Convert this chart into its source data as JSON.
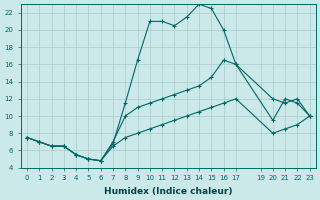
{
  "xlabel": "Humidex (Indice chaleur)",
  "bg_color": "#cce9e9",
  "grid_color": "#aacccc",
  "line_color": "#006666",
  "xlim": [
    -0.5,
    23.5
  ],
  "ylim": [
    4,
    23
  ],
  "xticks": [
    0,
    1,
    2,
    3,
    4,
    5,
    6,
    7,
    8,
    9,
    10,
    11,
    12,
    13,
    14,
    15,
    16,
    17,
    19,
    20,
    21,
    22,
    23
  ],
  "yticks": [
    4,
    6,
    8,
    10,
    12,
    14,
    16,
    18,
    20,
    22
  ],
  "line_main_x": [
    0,
    1,
    2,
    3,
    4,
    5,
    6,
    7,
    8,
    9,
    10,
    11,
    12,
    13,
    14,
    15,
    16,
    17,
    20,
    21,
    22,
    23
  ],
  "line_main_y": [
    7.5,
    7.0,
    6.5,
    6.5,
    5.5,
    5.0,
    4.8,
    6.8,
    11.5,
    16.5,
    21.0,
    21.0,
    20.5,
    21.5,
    23.0,
    22.5,
    20.0,
    16.0,
    12.0,
    11.5,
    12.0,
    10.0
  ],
  "line_upper_x": [
    0,
    1,
    2,
    3,
    4,
    5,
    6,
    7,
    8,
    9,
    10,
    11,
    12,
    13,
    14,
    15,
    16,
    17,
    20,
    21,
    22,
    23
  ],
  "line_upper_y": [
    7.5,
    7.0,
    6.5,
    6.5,
    5.5,
    5.0,
    4.8,
    7.0,
    10.0,
    11.0,
    11.5,
    12.0,
    12.5,
    13.0,
    13.5,
    14.5,
    16.5,
    16.0,
    9.5,
    12.0,
    11.5,
    10.0
  ],
  "line_lower_x": [
    0,
    1,
    2,
    3,
    4,
    5,
    6,
    7,
    8,
    9,
    10,
    11,
    12,
    13,
    14,
    15,
    16,
    17,
    20,
    21,
    22,
    23
  ],
  "line_lower_y": [
    7.5,
    7.0,
    6.5,
    6.5,
    5.5,
    5.0,
    4.8,
    6.5,
    7.5,
    8.0,
    8.5,
    9.0,
    9.5,
    10.0,
    10.5,
    11.0,
    11.5,
    12.0,
    8.0,
    8.5,
    9.0,
    10.0
  ]
}
